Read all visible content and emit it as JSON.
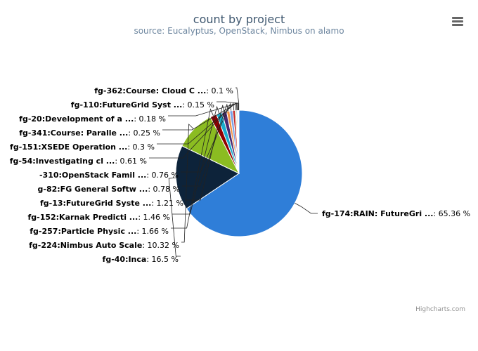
{
  "chart_data": {
    "type": "pie",
    "title": "count by project",
    "subtitle": "source: Eucalyptus, OpenStack, Nimbus on alamo",
    "credits": "Highcharts.com",
    "slices": [
      {
        "name": "fg-174:RAIN: FutureGri ...",
        "pct": 65.36,
        "label": "65.36 %",
        "color": "#2f7ed8"
      },
      {
        "name": "fg-40:Inca",
        "pct": 16.5,
        "label": "16.5 %",
        "color": "#0d233a"
      },
      {
        "name": "fg-224:Nimbus Auto Scale",
        "pct": 10.32,
        "label": "10.32 %",
        "color": "#8bbc21"
      },
      {
        "name": "fg-257:Particle Physic ...",
        "pct": 1.66,
        "label": "1.66 %",
        "color": "#910000"
      },
      {
        "name": "fg-152:Karnak Predicti ...",
        "pct": 1.46,
        "label": "1.46 %",
        "color": "#1aadce"
      },
      {
        "name": "fg-13:FutureGrid Syste ...",
        "pct": 1.21,
        "label": "1.21 %",
        "color": "#492970"
      },
      {
        "name": "g-82:FG General Softw ...",
        "pct": 0.78,
        "label": "0.78 %",
        "color": "#f28f43"
      },
      {
        "name": "-310:OpenStack Famil ...",
        "pct": 0.76,
        "label": "0.76 %",
        "color": "#77a1e5"
      },
      {
        "name": "fg-54:Investigating cl ...",
        "pct": 0.61,
        "label": "0.61 %",
        "color": "#c42525"
      },
      {
        "name": "fg-151:XSEDE Operation ...",
        "pct": 0.3,
        "label": "0.3 %",
        "color": "#a6c96a"
      },
      {
        "name": "fg-341:Course: Paralle ...",
        "pct": 0.25,
        "label": "0.25 %",
        "color": "#2f7ed8"
      },
      {
        "name": "fg-20:Development of a ...",
        "pct": 0.18,
        "label": "0.18 %",
        "color": "#0d233a"
      },
      {
        "name": "fg-110:FutureGrid Syst ...",
        "pct": 0.15,
        "label": "0.15 %",
        "color": "#8bbc21"
      },
      {
        "name": "fg-362:Course: Cloud C ...",
        "pct": 0.1,
        "label": "0.1 %",
        "color": "#910000"
      }
    ]
  },
  "menu_icon": "hamburger-menu-icon"
}
